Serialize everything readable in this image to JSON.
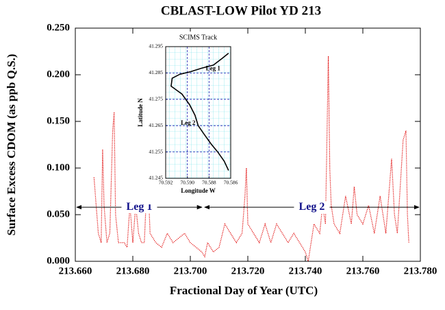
{
  "chart_data": [
    {
      "type": "line",
      "title": "CBLAST-LOW Pilot  YD 213",
      "x_label": "Fractional Day of Year (UTC)",
      "y_label": "Surface Excess CDOM (as ppb Q.S.)",
      "color": "#e00000",
      "xlim": [
        213.66,
        213.78
      ],
      "xticks": [
        {
          "value": 213.66,
          "label": "213.660"
        },
        {
          "value": 213.68,
          "label": "213.680"
        },
        {
          "value": 213.7,
          "label": "213.700"
        },
        {
          "value": 213.72,
          "label": "213.720"
        },
        {
          "value": 213.74,
          "label": "213.740"
        },
        {
          "value": 213.76,
          "label": "213.760"
        },
        {
          "value": 213.78,
          "label": "213.780"
        }
      ],
      "ylim": [
        0,
        0.25
      ],
      "yticks": [
        {
          "value": 0,
          "label": "0.000"
        },
        {
          "value": 0.05,
          "label": "0.050"
        },
        {
          "value": 0.1,
          "label": "0.100"
        },
        {
          "value": 0.15,
          "label": "0.150"
        },
        {
          "value": 0.2,
          "label": "0.200"
        },
        {
          "value": 0.25,
          "label": "0.250"
        }
      ],
      "x": [
        213.6665,
        213.667,
        213.668,
        213.669,
        213.6695,
        213.67,
        213.671,
        213.672,
        213.673,
        213.6735,
        213.674,
        213.675,
        213.677,
        213.678,
        213.679,
        213.68,
        213.681,
        213.682,
        213.683,
        213.684,
        213.685,
        213.6855,
        213.686,
        213.688,
        213.69,
        213.692,
        213.694,
        213.696,
        213.698,
        213.7,
        213.702,
        213.704,
        213.705,
        213.706,
        213.708,
        213.71,
        213.712,
        213.714,
        213.716,
        213.718,
        213.719,
        213.7195,
        213.72,
        213.722,
        213.724,
        213.726,
        213.728,
        213.73,
        213.732,
        213.734,
        213.736,
        213.738,
        213.74,
        213.741,
        213.743,
        213.745,
        213.746,
        213.747,
        213.748,
        213.7485,
        213.749,
        213.75,
        213.752,
        213.754,
        213.756,
        213.757,
        213.758,
        213.76,
        213.762,
        213.764,
        213.766,
        213.768,
        213.77,
        213.771,
        213.772,
        213.774,
        213.775,
        213.7755,
        213.776
      ],
      "values": [
        0.09,
        0.07,
        0.03,
        0.02,
        0.12,
        0.06,
        0.02,
        0.03,
        0.14,
        0.16,
        0.05,
        0.02,
        0.02,
        0.015,
        0.06,
        0.02,
        0.06,
        0.03,
        0.02,
        0.02,
        0.09,
        0.07,
        0.03,
        0.02,
        0.015,
        0.03,
        0.02,
        0.025,
        0.03,
        0.02,
        0.015,
        0.01,
        0.005,
        0.02,
        0.01,
        0.015,
        0.04,
        0.03,
        0.02,
        0.03,
        0.07,
        0.1,
        0.04,
        0.03,
        0.02,
        0.04,
        0.02,
        0.04,
        0.03,
        0.02,
        0.03,
        0.02,
        0.01,
        0.0,
        0.04,
        0.03,
        0.06,
        0.04,
        0.22,
        0.1,
        0.06,
        0.04,
        0.03,
        0.07,
        0.04,
        0.08,
        0.05,
        0.04,
        0.06,
        0.03,
        0.07,
        0.03,
        0.11,
        0.05,
        0.03,
        0.13,
        0.14,
        0.05,
        0.02
      ],
      "annotations": [
        {
          "text": "Leg 1",
          "x": [
            213.66,
            213.7045
          ],
          "y": 0.058
        },
        {
          "text": "Leg 2",
          "x": [
            213.7045,
            213.78
          ],
          "y": 0.058
        }
      ]
    },
    {
      "type": "line",
      "title": "SCIMS Track",
      "x_label": "Longitude W",
      "y_label": "Latitude N",
      "color": "#000000",
      "grid": true,
      "xlim": [
        70.592,
        70.586
      ],
      "xticks": [
        70.592,
        {
          "value": 70.59,
          "label": "70.590"
        },
        70.588,
        70.586
      ],
      "ylim": [
        41.245,
        41.295
      ],
      "yticks": [
        41.245,
        41.255,
        41.265,
        41.275,
        41.285,
        41.295
      ],
      "x": [
        70.5862,
        70.5868,
        70.5876,
        70.5887,
        70.5897,
        70.5907,
        70.5914,
        70.5915,
        70.591,
        70.5905,
        70.5898,
        70.5893,
        70.589,
        70.5885,
        70.5878,
        70.5872,
        70.5866,
        70.5862
      ],
      "values": [
        41.2925,
        41.2905,
        41.288,
        41.2868,
        41.2855,
        41.2845,
        41.283,
        41.28,
        41.2785,
        41.277,
        41.273,
        41.269,
        41.265,
        41.262,
        41.258,
        41.255,
        41.2515,
        41.248
      ],
      "annotations": [
        {
          "text": "Leg 1",
          "x": [
            70.5883
          ],
          "y": 41.2865
        },
        {
          "text": "Leg 2",
          "x": [
            70.5906
          ],
          "y": 41.2658
        }
      ]
    }
  ]
}
